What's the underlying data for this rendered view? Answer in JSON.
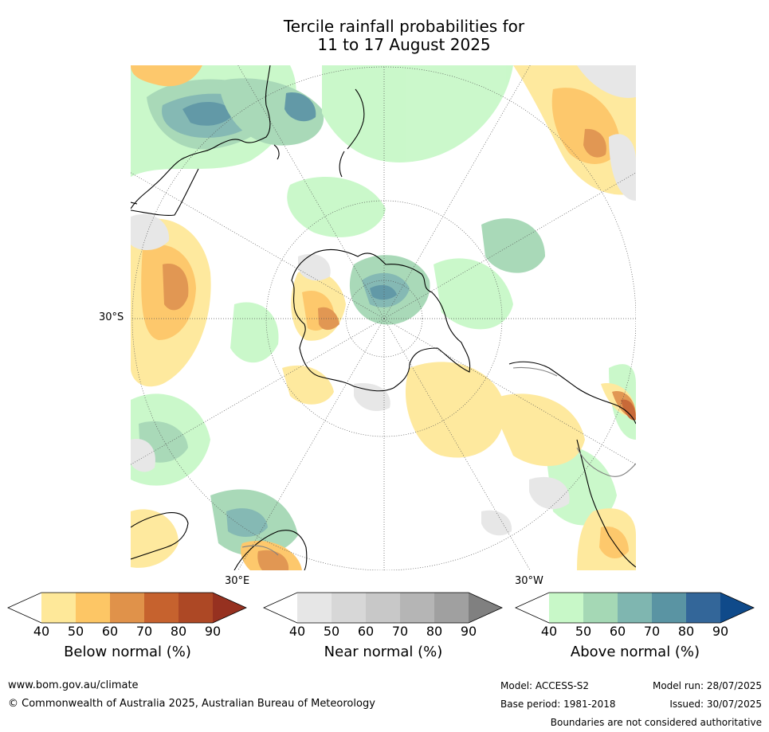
{
  "title": {
    "line1": "Tercile rainfall probabilities for",
    "line2": "11 to 17 August 2025"
  },
  "map": {
    "projection": "south-polar-stereographic",
    "labels": {
      "lat_30s": "30°S",
      "lon_30e": "30°E",
      "lon_30w": "30°W"
    },
    "colors": {
      "coastline": "#000000",
      "graticule": "#555555",
      "background": "#ffffff"
    }
  },
  "colorbars": [
    {
      "id": "below",
      "title": "Below normal (%)",
      "ticks": [
        "40",
        "50",
        "60",
        "70",
        "80",
        "90"
      ],
      "low_extend_color": "#ffffff",
      "colors": [
        "#fee899",
        "#fdc665",
        "#e0924a",
        "#c6622e",
        "#ad4825"
      ],
      "high_extend_color": "#963120"
    },
    {
      "id": "near",
      "title": "Near normal (%)",
      "ticks": [
        "40",
        "50",
        "60",
        "70",
        "80",
        "90"
      ],
      "low_extend_color": "#ffffff",
      "colors": [
        "#e6e6e6",
        "#d7d7d7",
        "#c8c8c8",
        "#b5b5b5",
        "#a0a0a0"
      ],
      "high_extend_color": "#808080"
    },
    {
      "id": "above",
      "title": "Above normal (%)",
      "ticks": [
        "40",
        "50",
        "60",
        "70",
        "80",
        "90"
      ],
      "low_extend_color": "#ffffff",
      "colors": [
        "#c8f8c8",
        "#a5d8b5",
        "#7fb6b0",
        "#5a94a3",
        "#336699"
      ],
      "high_extend_color": "#0f4a8a"
    }
  ],
  "footer": {
    "website": "www.bom.gov.au/climate",
    "copyright": "© Commonwealth of Australia 2025, Australian Bureau of Meteorology",
    "model": "Model: ACCESS-S2",
    "base_period": "Base period: 1981-2018",
    "model_run": "Model run: 28/07/2025",
    "issued": "Issued: 30/07/2025",
    "disclaimer": "Boundaries are not considered authoritative"
  }
}
